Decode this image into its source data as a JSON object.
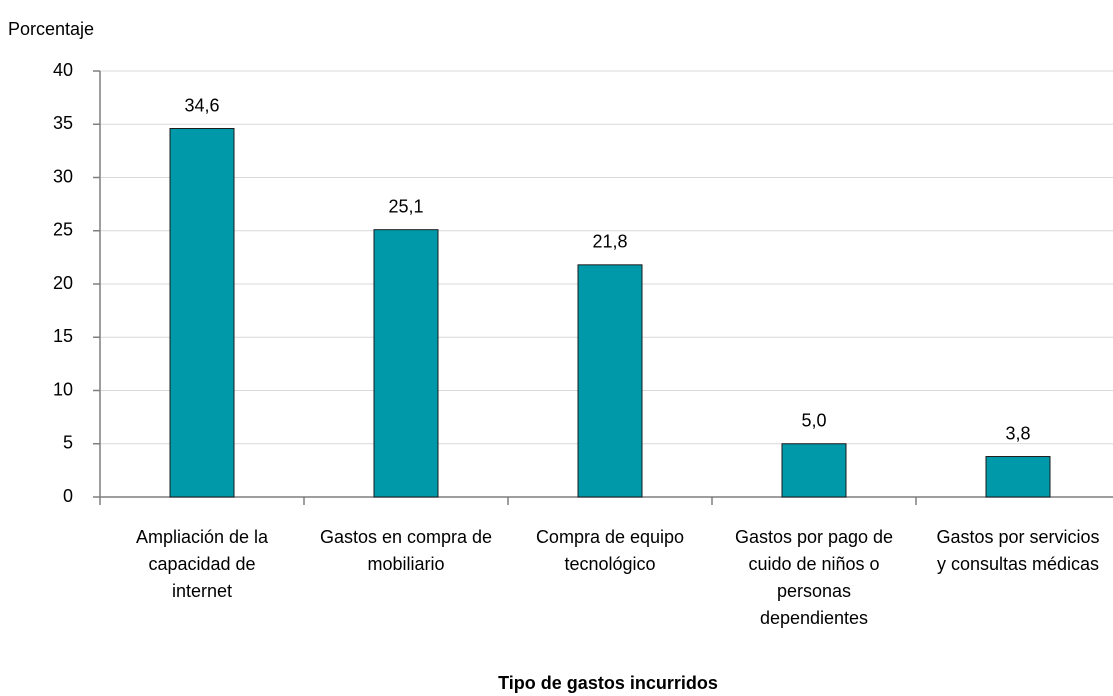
{
  "chart_data": {
    "type": "bar",
    "y_label": "Porcentaje",
    "x_label": "Tipo de gastos incurridos",
    "categories": [
      [
        "Ampliación de la",
        "capacidad de",
        "internet"
      ],
      [
        "Gastos en compra de",
        "mobiliario"
      ],
      [
        "Compra de equipo",
        "tecnológico"
      ],
      [
        "Gastos por pago de",
        "cuido de niños o",
        "personas",
        "dependientes"
      ],
      [
        "Gastos por servicios",
        "y consultas médicas"
      ]
    ],
    "values": [
      34.6,
      25.1,
      21.8,
      5.0,
      3.8
    ],
    "value_labels": [
      "34,6",
      "25,1",
      "21,8",
      "5,0",
      "3,8"
    ],
    "color": "#0099a9",
    "ylim": [
      0,
      40
    ],
    "yticks": [
      0,
      5,
      10,
      15,
      20,
      25,
      30,
      35,
      40
    ],
    "grid": true
  }
}
